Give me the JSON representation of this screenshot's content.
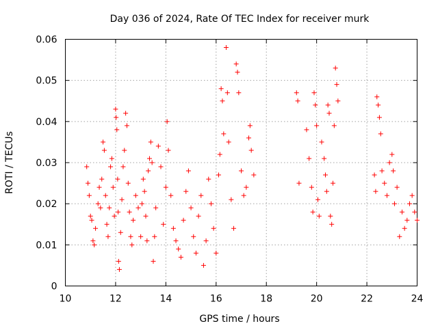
{
  "chart_data": {
    "type": "scatter",
    "title": "Day 036 of 2024, Rate Of TEC Index for receiver murk",
    "xlabel": "GPS time / hours",
    "ylabel": "ROTI / TECUs",
    "xlim": [
      10,
      24
    ],
    "ylim": [
      0,
      0.06
    ],
    "x_ticks": [
      10,
      12,
      14,
      16,
      18,
      20,
      22,
      24
    ],
    "x_tick_labels": [
      "10",
      "12",
      "14",
      "16",
      "18",
      "20",
      "22",
      "24"
    ],
    "y_ticks": [
      0,
      0.01,
      0.02,
      0.03,
      0.04,
      0.05,
      0.06
    ],
    "y_tick_labels": [
      "0",
      "0.01",
      "0.02",
      "0.03",
      "0.04",
      "0.05",
      "0.06"
    ],
    "grid": true,
    "marker": "plus",
    "color": "#ff0000",
    "series": [
      {
        "name": "ROTI",
        "points": [
          [
            10.85,
            0.029
          ],
          [
            10.9,
            0.025
          ],
          [
            10.95,
            0.022
          ],
          [
            11.0,
            0.017
          ],
          [
            11.05,
            0.016
          ],
          [
            11.1,
            0.011
          ],
          [
            11.15,
            0.01
          ],
          [
            11.2,
            0.014
          ],
          [
            11.3,
            0.02
          ],
          [
            11.35,
            0.024
          ],
          [
            11.4,
            0.019
          ],
          [
            11.45,
            0.026
          ],
          [
            11.5,
            0.035
          ],
          [
            11.55,
            0.033
          ],
          [
            11.6,
            0.022
          ],
          [
            11.65,
            0.015
          ],
          [
            11.7,
            0.012
          ],
          [
            11.75,
            0.019
          ],
          [
            11.8,
            0.029
          ],
          [
            11.85,
            0.031
          ],
          [
            11.9,
            0.024
          ],
          [
            11.95,
            0.017
          ],
          [
            12.0,
            0.043
          ],
          [
            12.02,
            0.041
          ],
          [
            12.05,
            0.038
          ],
          [
            12.08,
            0.026
          ],
          [
            12.1,
            0.018
          ],
          [
            12.12,
            0.006
          ],
          [
            12.15,
            0.004
          ],
          [
            12.2,
            0.013
          ],
          [
            12.25,
            0.021
          ],
          [
            12.3,
            0.029
          ],
          [
            12.35,
            0.033
          ],
          [
            12.4,
            0.042
          ],
          [
            12.45,
            0.039
          ],
          [
            12.5,
            0.025
          ],
          [
            12.55,
            0.018
          ],
          [
            12.6,
            0.012
          ],
          [
            12.65,
            0.01
          ],
          [
            12.7,
            0.016
          ],
          [
            12.8,
            0.022
          ],
          [
            12.9,
            0.019
          ],
          [
            13.0,
            0.012
          ],
          [
            13.05,
            0.02
          ],
          [
            13.1,
            0.026
          ],
          [
            13.15,
            0.023
          ],
          [
            13.2,
            0.017
          ],
          [
            13.25,
            0.011
          ],
          [
            13.3,
            0.028
          ],
          [
            13.35,
            0.031
          ],
          [
            13.4,
            0.035
          ],
          [
            13.45,
            0.03
          ],
          [
            13.5,
            0.006
          ],
          [
            13.55,
            0.012
          ],
          [
            13.6,
            0.019
          ],
          [
            13.7,
            0.034
          ],
          [
            13.8,
            0.029
          ],
          [
            13.9,
            0.015
          ],
          [
            14.0,
            0.024
          ],
          [
            14.05,
            0.04
          ],
          [
            14.1,
            0.033
          ],
          [
            14.2,
            0.022
          ],
          [
            14.3,
            0.014
          ],
          [
            14.4,
            0.011
          ],
          [
            14.5,
            0.009
          ],
          [
            14.6,
            0.007
          ],
          [
            14.7,
            0.016
          ],
          [
            14.8,
            0.023
          ],
          [
            14.9,
            0.028
          ],
          [
            15.0,
            0.019
          ],
          [
            15.1,
            0.012
          ],
          [
            15.2,
            0.008
          ],
          [
            15.3,
            0.017
          ],
          [
            15.4,
            0.022
          ],
          [
            15.5,
            0.005
          ],
          [
            15.6,
            0.011
          ],
          [
            15.7,
            0.026
          ],
          [
            15.8,
            0.02
          ],
          [
            15.9,
            0.014
          ],
          [
            16.0,
            0.008
          ],
          [
            16.1,
            0.027
          ],
          [
            16.15,
            0.032
          ],
          [
            16.2,
            0.048
          ],
          [
            16.25,
            0.045
          ],
          [
            16.3,
            0.037
          ],
          [
            16.4,
            0.058
          ],
          [
            16.45,
            0.047
          ],
          [
            16.5,
            0.035
          ],
          [
            16.6,
            0.021
          ],
          [
            16.7,
            0.014
          ],
          [
            16.8,
            0.054
          ],
          [
            16.85,
            0.052
          ],
          [
            16.9,
            0.047
          ],
          [
            17.0,
            0.028
          ],
          [
            17.1,
            0.022
          ],
          [
            17.2,
            0.024
          ],
          [
            17.3,
            0.036
          ],
          [
            17.35,
            0.039
          ],
          [
            17.4,
            0.033
          ],
          [
            17.5,
            0.027
          ],
          [
            19.2,
            0.047
          ],
          [
            19.25,
            0.045
          ],
          [
            19.3,
            0.025
          ],
          [
            19.6,
            0.038
          ],
          [
            19.7,
            0.031
          ],
          [
            19.8,
            0.024
          ],
          [
            19.85,
            0.018
          ],
          [
            19.9,
            0.047
          ],
          [
            19.95,
            0.044
          ],
          [
            20.0,
            0.039
          ],
          [
            20.05,
            0.021
          ],
          [
            20.1,
            0.017
          ],
          [
            20.2,
            0.035
          ],
          [
            20.3,
            0.031
          ],
          [
            20.35,
            0.027
          ],
          [
            20.4,
            0.023
          ],
          [
            20.45,
            0.044
          ],
          [
            20.5,
            0.042
          ],
          [
            20.55,
            0.017
          ],
          [
            20.6,
            0.015
          ],
          [
            20.65,
            0.025
          ],
          [
            20.7,
            0.039
          ],
          [
            20.75,
            0.053
          ],
          [
            20.8,
            0.049
          ],
          [
            20.85,
            0.045
          ],
          [
            22.3,
            0.027
          ],
          [
            22.35,
            0.023
          ],
          [
            22.4,
            0.046
          ],
          [
            22.45,
            0.044
          ],
          [
            22.5,
            0.041
          ],
          [
            22.55,
            0.037
          ],
          [
            22.6,
            0.028
          ],
          [
            22.7,
            0.025
          ],
          [
            22.8,
            0.022
          ],
          [
            22.9,
            0.03
          ],
          [
            23.0,
            0.032
          ],
          [
            23.05,
            0.028
          ],
          [
            23.1,
            0.02
          ],
          [
            23.2,
            0.024
          ],
          [
            23.3,
            0.012
          ],
          [
            23.4,
            0.018
          ],
          [
            23.5,
            0.014
          ],
          [
            23.6,
            0.016
          ],
          [
            23.7,
            0.02
          ],
          [
            23.8,
            0.022
          ],
          [
            23.9,
            0.018
          ],
          [
            24.0,
            0.016
          ]
        ]
      }
    ]
  }
}
